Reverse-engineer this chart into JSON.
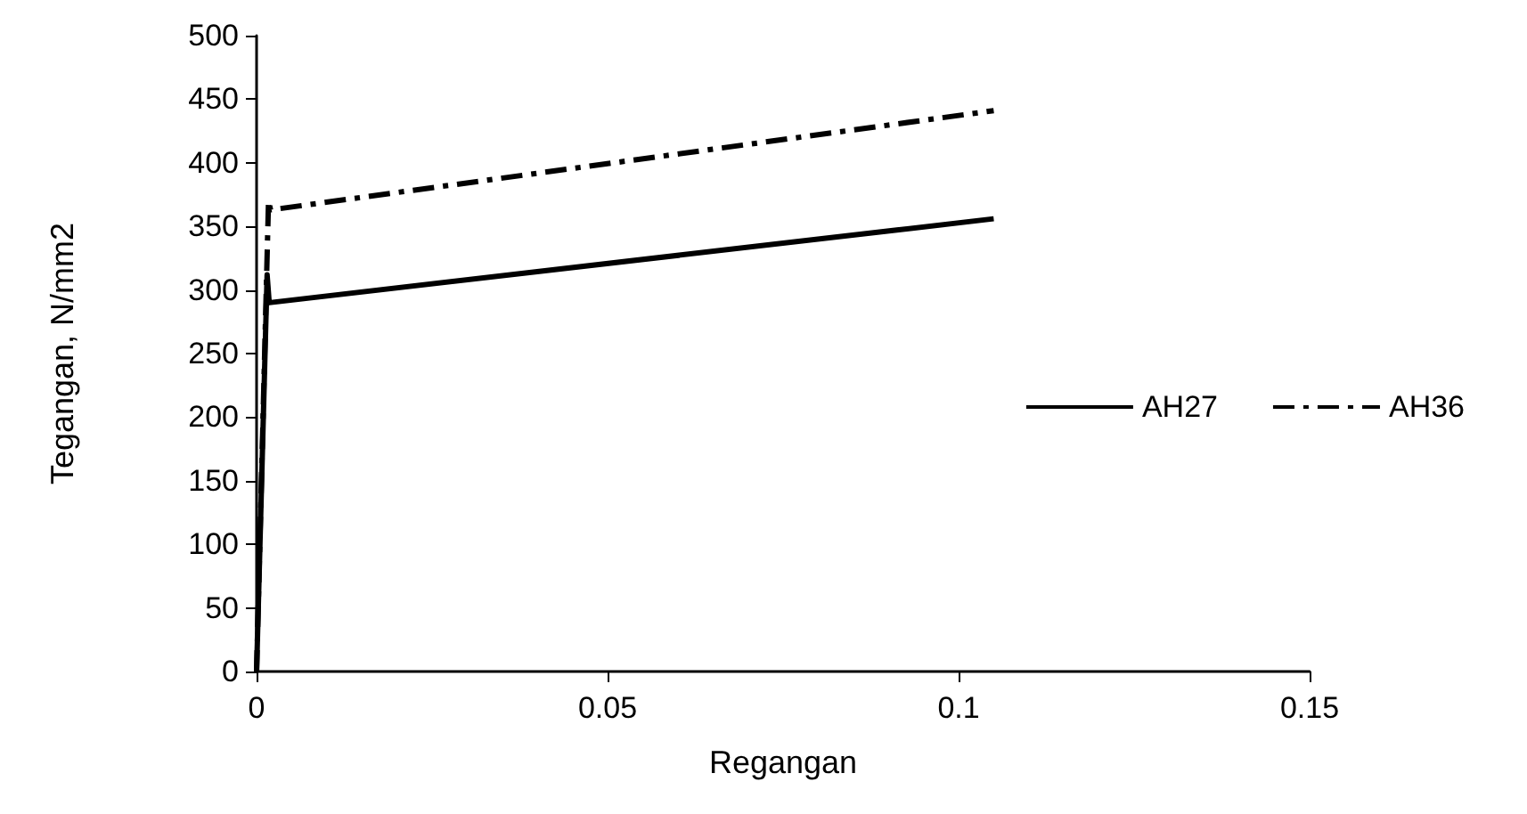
{
  "chart_data": {
    "type": "line",
    "xlabel": "Regangan",
    "ylabel": "Tegangan, N/mm2",
    "xlim": [
      0,
      0.15
    ],
    "xticks": [
      0,
      0.05,
      0.1,
      0.15
    ],
    "ylim": [
      0,
      500
    ],
    "yticks": [
      0,
      50,
      100,
      150,
      200,
      250,
      300,
      350,
      400,
      450,
      500
    ],
    "grid": false,
    "legend": "right",
    "marker": "none",
    "series": [
      {
        "name": "AH27",
        "color": "#000000",
        "line_style": "solid",
        "x": [
          0,
          0.0015,
          0.0018,
          0.105
        ],
        "values": [
          0,
          312,
          290,
          356
        ]
      },
      {
        "name": "AH36",
        "color": "#000000",
        "line_style": "dashed",
        "x": [
          0,
          0.0017,
          0.002,
          0.105
        ],
        "values": [
          0,
          370,
          363,
          441
        ]
      }
    ]
  }
}
